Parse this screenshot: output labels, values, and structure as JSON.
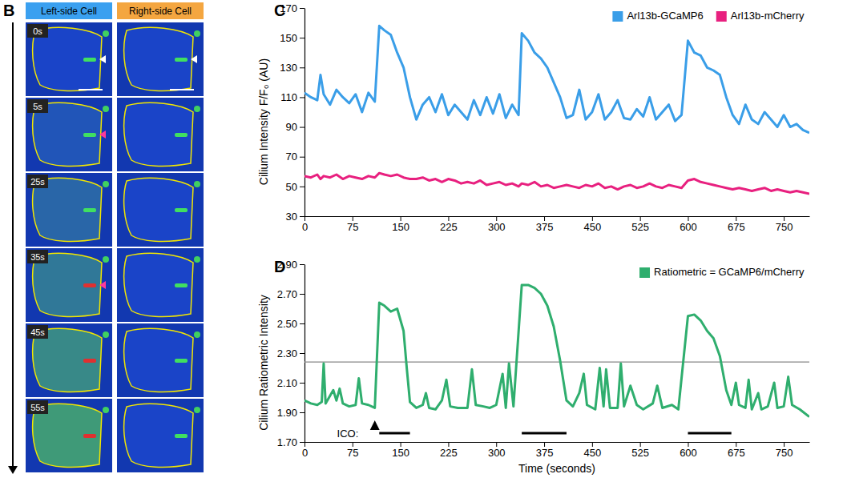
{
  "image_panel": {
    "label": "B",
    "columns": [
      "Left-side Cell",
      "Right-side Cell"
    ],
    "times": [
      "0s",
      "5s",
      "25s",
      "35s",
      "45s",
      "55s"
    ]
  },
  "chart_data": [
    {
      "panel": "C",
      "type": "line",
      "y_label": "Cilium Intensity F/F₀ (AU)",
      "xlim": [
        0,
        790
      ],
      "xticks": [
        0,
        75,
        150,
        225,
        300,
        375,
        450,
        525,
        600,
        675,
        750
      ],
      "ylim": [
        30,
        170
      ],
      "yticks": [
        30,
        50,
        70,
        90,
        110,
        130,
        150,
        170
      ],
      "legend": "top-right",
      "x": [
        0,
        10,
        20,
        25,
        30,
        40,
        50,
        60,
        70,
        80,
        90,
        100,
        110,
        117,
        125,
        135,
        145,
        155,
        165,
        175,
        185,
        195,
        205,
        215,
        225,
        235,
        245,
        255,
        265,
        275,
        285,
        295,
        305,
        315,
        325,
        335,
        340,
        350,
        360,
        370,
        380,
        390,
        400,
        410,
        420,
        430,
        440,
        450,
        460,
        470,
        480,
        490,
        500,
        510,
        520,
        530,
        540,
        550,
        560,
        570,
        580,
        590,
        600,
        610,
        620,
        630,
        640,
        650,
        660,
        670,
        680,
        690,
        700,
        710,
        720,
        730,
        740,
        750,
        760,
        770,
        780,
        790
      ],
      "series": [
        {
          "name": "Arl13b-GCaMP6",
          "color": "#3a9ee8",
          "values": [
            113,
            110,
            108,
            125,
            112,
            105,
            115,
            110,
            106,
            112,
            100,
            113,
            107,
            158,
            155,
            152,
            140,
            130,
            110,
            95,
            105,
            110,
            100,
            112,
            98,
            105,
            100,
            95,
            108,
            98,
            110,
            99,
            112,
            96,
            105,
            98,
            153,
            148,
            140,
            136,
            130,
            120,
            110,
            96,
            98,
            115,
            95,
            100,
            112,
            95,
            100,
            108,
            96,
            95,
            102,
            97,
            110,
            95,
            100,
            105,
            94,
            98,
            148,
            140,
            138,
            130,
            128,
            125,
            110,
            98,
            92,
            105,
            95,
            92,
            100,
            95,
            90,
            98,
            90,
            92,
            88,
            86
          ]
        },
        {
          "name": "Arl13b-mCherry",
          "color": "#e8207f",
          "values": [
            57,
            56,
            58,
            55,
            57,
            56,
            58,
            55,
            57,
            56,
            55,
            57,
            56,
            59,
            58,
            57,
            58,
            56,
            55,
            55,
            56,
            54,
            55,
            53,
            55,
            54,
            52,
            53,
            52,
            54,
            51,
            52,
            53,
            51,
            52,
            50,
            52,
            51,
            53,
            50,
            51,
            49,
            50,
            51,
            50,
            49,
            51,
            50,
            52,
            49,
            50,
            48,
            50,
            51,
            49,
            50,
            52,
            50,
            49,
            51,
            50,
            49,
            54,
            55,
            53,
            52,
            51,
            50,
            49,
            48,
            49,
            48,
            47,
            48,
            49,
            47,
            48,
            47,
            46,
            47,
            46,
            45
          ]
        }
      ]
    },
    {
      "panel": "D",
      "type": "line",
      "x_label": "Time (seconds)",
      "y_label": "Cilium Ratiometric Intensity",
      "xlim": [
        0,
        790
      ],
      "xticks": [
        0,
        75,
        150,
        225,
        300,
        375,
        450,
        525,
        600,
        675,
        750
      ],
      "ylim": [
        1.7,
        2.9
      ],
      "yticks": [
        {
          "value": 1.7,
          "label": "1.70"
        },
        {
          "value": 1.9,
          "label": "1.90"
        },
        {
          "value": 2.1,
          "label": "2.10"
        },
        {
          "value": 2.3,
          "label": "2.30"
        },
        {
          "value": 2.5,
          "label": "2.50"
        },
        {
          "value": 2.7,
          "label": "2.70"
        },
        {
          "value": 2.9,
          "label": "2.90"
        }
      ],
      "legend": "top-right",
      "threshold": 2.24,
      "ico_label": "ICO:",
      "ico_marker": 110,
      "ico_periods": [
        [
          117,
          165
        ],
        [
          340,
          410
        ],
        [
          600,
          668
        ]
      ],
      "x": [
        0,
        10,
        20,
        27,
        30,
        33,
        45,
        50,
        55,
        60,
        70,
        80,
        85,
        90,
        100,
        110,
        117,
        125,
        135,
        145,
        155,
        160,
        165,
        175,
        185,
        190,
        195,
        205,
        215,
        222,
        228,
        240,
        255,
        262,
        268,
        280,
        290,
        300,
        310,
        315,
        320,
        327,
        340,
        350,
        360,
        370,
        380,
        390,
        400,
        410,
        420,
        430,
        437,
        442,
        455,
        462,
        468,
        472,
        478,
        490,
        495,
        500,
        510,
        520,
        530,
        545,
        552,
        560,
        575,
        585,
        600,
        610,
        620,
        630,
        640,
        650,
        660,
        668,
        675,
        680,
        690,
        695,
        700,
        710,
        715,
        725,
        735,
        740,
        750,
        757,
        763,
        775,
        790
      ],
      "series": [
        {
          "name": "Ratiometric = GCaMP6/mCherry",
          "color": "#2fae6e",
          "values": [
            1.98,
            1.96,
            1.95,
            1.97,
            2.23,
            1.96,
            2.05,
            1.98,
            2.06,
            1.96,
            1.94,
            1.95,
            2.13,
            1.96,
            1.95,
            1.93,
            2.64,
            2.62,
            2.58,
            2.6,
            2.45,
            2.2,
            1.97,
            1.93,
            1.95,
            2.03,
            1.93,
            1.92,
            1.98,
            2.12,
            1.94,
            1.93,
            1.93,
            2.19,
            1.95,
            1.94,
            1.93,
            1.95,
            2.16,
            1.93,
            2.23,
            1.94,
            2.76,
            2.76,
            2.74,
            2.7,
            2.62,
            2.48,
            2.25,
            1.98,
            1.94,
            2.03,
            2.16,
            1.95,
            1.92,
            2.2,
            1.94,
            2.19,
            1.93,
            1.93,
            2.23,
            1.94,
            2.08,
            1.95,
            1.92,
            1.96,
            2.08,
            1.93,
            1.95,
            1.92,
            2.55,
            2.56,
            2.52,
            2.45,
            2.4,
            2.28,
            2.05,
            1.95,
            2.1,
            1.95,
            1.93,
            2.12,
            1.92,
            2.03,
            1.92,
            1.94,
            2.1,
            1.93,
            1.94,
            2.14,
            1.95,
            1.92,
            1.87
          ]
        }
      ]
    }
  ]
}
